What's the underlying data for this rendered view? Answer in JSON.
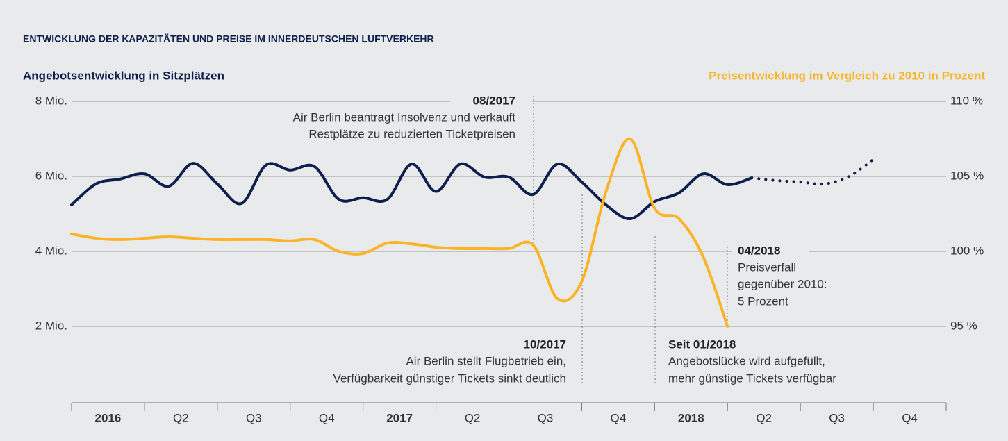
{
  "chart_data": {
    "type": "line",
    "title": "ENTWICKLUNG DER KAPAZITÄTEN UND PREISE IM INNERDEUTSCHEN LUFTVERKEHR",
    "y_label": "Angebotsentwicklung in Sitzplätzen",
    "y2_label": "Preisentwicklung im Vergleich zu 2010 in Prozent",
    "categories": [
      "2016",
      "Q2",
      "Q3",
      "Q4",
      "2017",
      "Q2",
      "Q3",
      "Q4",
      "2018",
      "Q2",
      "Q3",
      "Q4"
    ],
    "x": [
      "01/2016",
      "02/2016",
      "03/2016",
      "04/2016",
      "05/2016",
      "06/2016",
      "07/2016",
      "08/2016",
      "09/2016",
      "10/2016",
      "11/2016",
      "12/2016",
      "01/2017",
      "02/2017",
      "03/2017",
      "04/2017",
      "05/2017",
      "06/2017",
      "07/2017",
      "08/2017",
      "09/2017",
      "10/2017",
      "11/2017",
      "12/2017",
      "01/2018",
      "02/2018",
      "03/2018",
      "04/2018",
      "05/2018",
      "06/2018",
      "07/2018",
      "08/2018",
      "09/2018",
      "10/2018",
      "11/2018",
      "12/2018"
    ],
    "series": [
      {
        "color": "#0d1f4c",
        "style": "solid",
        "values": [
          5.24,
          5.8,
          5.93,
          6.07,
          5.74,
          6.35,
          5.8,
          5.28,
          6.3,
          6.17,
          6.26,
          5.39,
          5.43,
          5.39,
          6.33,
          5.6,
          6.33,
          5.98,
          5.98,
          5.52,
          6.33,
          5.85,
          5.24,
          4.87,
          5.33,
          5.56,
          6.07,
          5.78,
          5.96,
          null,
          null,
          null,
          null,
          null,
          null,
          null
        ]
      },
      {
        "color": "#0d1f4c",
        "style": "dotted",
        "values": [
          null,
          null,
          null,
          null,
          null,
          null,
          null,
          null,
          null,
          null,
          null,
          null,
          null,
          null,
          null,
          null,
          null,
          null,
          null,
          null,
          null,
          null,
          null,
          null,
          null,
          null,
          null,
          null,
          5.96,
          5.89,
          5.85,
          5.8,
          6.0,
          6.45,
          null,
          null
        ]
      },
      {
        "color": "#fbb428",
        "style": "solid",
        "axis": "y2",
        "values": [
          101.16,
          100.88,
          100.79,
          100.88,
          100.97,
          100.88,
          100.79,
          100.79,
          100.79,
          100.7,
          100.79,
          100,
          99.86,
          100.56,
          100.5,
          100.28,
          100.19,
          100.19,
          100.19,
          100.42,
          96.85,
          98.0,
          104.0,
          107.5,
          102.87,
          102.18,
          99.63,
          95,
          null,
          null,
          null,
          null,
          null,
          null,
          null,
          null
        ]
      }
    ],
    "ylim": [
      2,
      8
    ],
    "yticks": [
      {
        "value": 8,
        "label": "8 Mio."
      },
      {
        "value": 6,
        "label": "6 Mio."
      },
      {
        "value": 4,
        "label": "4 Mio."
      },
      {
        "value": 2,
        "label": "2 Mio."
      }
    ],
    "y2lim": [
      95,
      110
    ],
    "y2ticks": [
      {
        "value": 110,
        "label": "110 %"
      },
      {
        "value": 105,
        "label": "105 %"
      },
      {
        "value": 100,
        "label": "100 %"
      },
      {
        "value": 95,
        "label": "95 %"
      }
    ],
    "grid": true,
    "annotations": [
      {
        "title": "08/2017",
        "lines": [
          "Air Berlin beantragt Insolvenz und verkauft",
          "Restplätze zu reduzierten Ticketpreisen"
        ]
      },
      {
        "title": "10/2017",
        "lines": [
          "Air Berlin stellt Flugbetrieb ein,",
          "Verfügbarkeit günstiger Tickets sinkt deutlich"
        ]
      },
      {
        "title": "Seit 01/2018",
        "lines": [
          "Angebotslücke wird aufgefüllt,",
          "mehr günstige Tickets verfügbar"
        ]
      },
      {
        "title": "04/2018",
        "lines": [
          "Preisverfall",
          "gegenüber 2010:",
          "5 Prozent"
        ]
      }
    ]
  }
}
